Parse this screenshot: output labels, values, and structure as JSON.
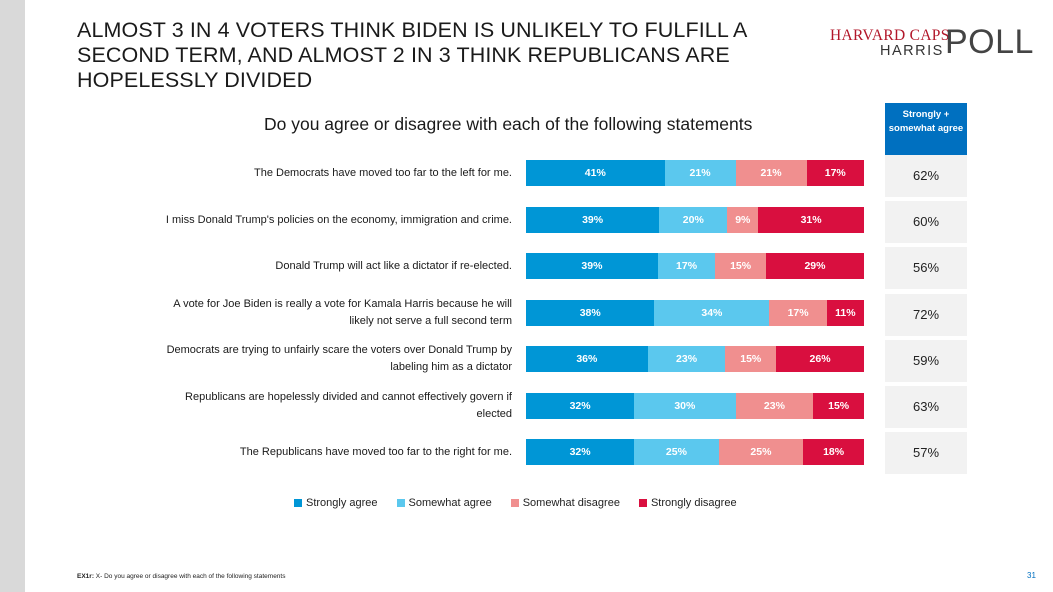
{
  "title": "ALMOST 3 IN 4 VOTERS THINK BIDEN IS UNLIKELY TO FULFILL A SECOND TERM, AND ALMOST 2 IN 3 THINK REPUBLICANS ARE HOPELESSLY DIVIDED",
  "logo": {
    "line1": "HARVARD CAPS",
    "line2": "HARRIS",
    "line3": "POLL"
  },
  "footnote": {
    "code": "EX1r:",
    "text": " X- Do you agree or disagree with each of the following statements"
  },
  "page_number": "31",
  "colors": {
    "strongly_agree": "#0096d6",
    "somewhat_agree": "#5bc8ee",
    "somewhat_disagree": "#f08f8f",
    "strongly_disagree": "#d90f3f",
    "summary_header": "#0070c0"
  },
  "chart_data": {
    "type": "bar",
    "orientation": "horizontal",
    "stacked": true,
    "title": "Do you agree or disagree with each of the following statements",
    "categories": [
      "The Democrats have moved too far to the left for me.",
      "I miss Donald Trump's policies on the economy, immigration and crime.",
      "Donald Trump will act like a dictator if re-elected.",
      "A vote for Joe Biden is really a vote for Kamala Harris because he will likely not serve a full second term",
      "Democrats are trying to unfairly scare the voters over Donald Trump by labeling him as a dictator",
      "Republicans are hopelessly divided and cannot effectively govern if elected",
      "The Republicans have moved too far to the right for me."
    ],
    "series": [
      {
        "name": "Strongly agree",
        "color": "#0096d6",
        "values": [
          41,
          39,
          39,
          38,
          36,
          32,
          32
        ]
      },
      {
        "name": "Somewhat agree",
        "color": "#5bc8ee",
        "values": [
          21,
          20,
          17,
          34,
          23,
          30,
          25
        ]
      },
      {
        "name": "Somewhat disagree",
        "color": "#f08f8f",
        "values": [
          21,
          9,
          15,
          17,
          15,
          23,
          25
        ]
      },
      {
        "name": "Strongly disagree",
        "color": "#d90f3f",
        "values": [
          17,
          31,
          29,
          11,
          26,
          15,
          18
        ]
      }
    ],
    "data_label_suffix": "%",
    "legend_position": "bottom",
    "grid": false,
    "summary_column": {
      "header": "Strongly + somewhat agree",
      "values": [
        "62%",
        "60%",
        "56%",
        "72%",
        "59%",
        "63%",
        "57%"
      ]
    }
  }
}
